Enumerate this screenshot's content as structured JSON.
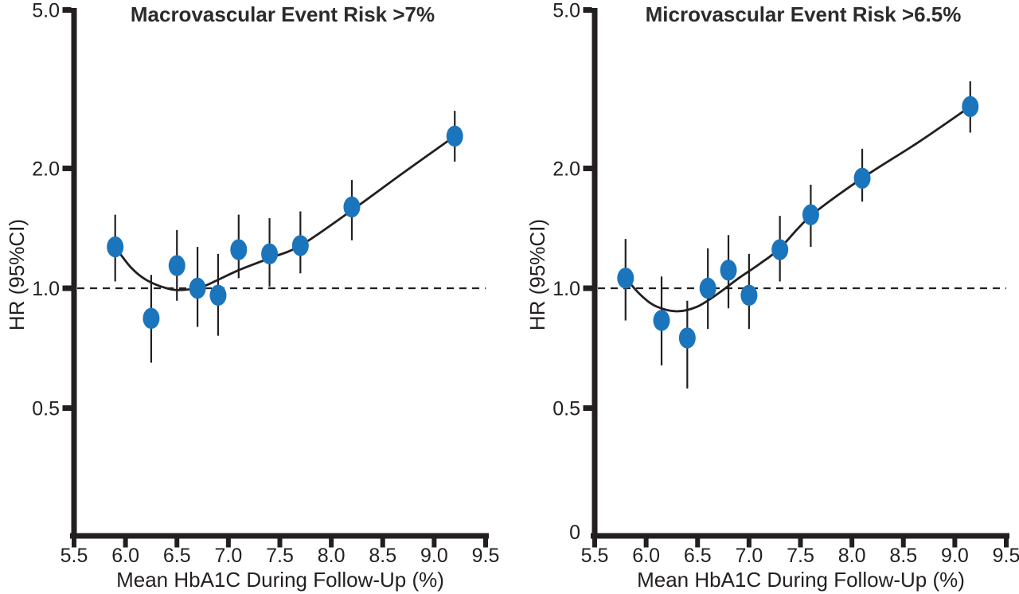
{
  "figure_colors": {
    "point": "#1b75bc",
    "ink": "#231f20"
  },
  "chart_data": [
    {
      "type": "scatter",
      "title": "Macrovascular Event Risk >7%",
      "xlabel": "Mean HbA1C During Follow-Up (%)",
      "ylabel": "HR (95%CI)",
      "y_scale": "log",
      "xlim": [
        5.5,
        9.5
      ],
      "grid": false,
      "reference_line_hr": 1.0,
      "x_ticks": [
        "5.5",
        "6.0",
        "6.5",
        "7.0",
        "7.5",
        "8.0",
        "8.5",
        "9.0",
        "9.5"
      ],
      "y_ticks": [
        {
          "value": 5.0,
          "label": "5.0"
        },
        {
          "value": 2.0,
          "label": "2.0"
        },
        {
          "value": 1.0,
          "label": "1.0"
        },
        {
          "value": 0.5,
          "label": "0.5"
        }
      ],
      "points": [
        {
          "x": 5.9,
          "hr": 1.27,
          "ci_low": 1.04,
          "ci_high": 1.53
        },
        {
          "x": 6.25,
          "hr": 0.84,
          "ci_low": 0.65,
          "ci_high": 1.08
        },
        {
          "x": 6.5,
          "hr": 1.14,
          "ci_low": 0.93,
          "ci_high": 1.4
        },
        {
          "x": 6.7,
          "hr": 1.0,
          "ci_low": 0.8,
          "ci_high": 1.27
        },
        {
          "x": 6.9,
          "hr": 0.96,
          "ci_low": 0.76,
          "ci_high": 1.22
        },
        {
          "x": 7.1,
          "hr": 1.25,
          "ci_low": 1.06,
          "ci_high": 1.53
        },
        {
          "x": 7.4,
          "hr": 1.22,
          "ci_low": 1.01,
          "ci_high": 1.5
        },
        {
          "x": 7.7,
          "hr": 1.28,
          "ci_low": 1.09,
          "ci_high": 1.56
        },
        {
          "x": 8.2,
          "hr": 1.6,
          "ci_low": 1.32,
          "ci_high": 1.87
        },
        {
          "x": 9.2,
          "hr": 2.41,
          "ci_low": 2.08,
          "ci_high": 2.79
        }
      ],
      "trend_curve": [
        [
          5.9,
          1.27
        ],
        [
          6.05,
          1.13
        ],
        [
          6.2,
          1.05
        ],
        [
          6.4,
          1.0
        ],
        [
          6.55,
          0.99
        ],
        [
          6.75,
          1.01
        ],
        [
          6.9,
          1.05
        ],
        [
          7.1,
          1.11
        ],
        [
          7.4,
          1.19
        ],
        [
          7.7,
          1.28
        ],
        [
          8.2,
          1.57
        ],
        [
          8.7,
          1.95
        ],
        [
          9.2,
          2.41
        ]
      ]
    },
    {
      "type": "scatter",
      "title": "Microvascular Event Risk >6.5%",
      "xlabel": "Mean HbA1C During Follow-Up (%)",
      "ylabel": "HR (95%CI)",
      "y_scale": "log",
      "xlim": [
        5.5,
        9.5
      ],
      "grid": false,
      "reference_line_hr": 1.0,
      "x_ticks": [
        "5.5",
        "6.0",
        "6.5",
        "7.0",
        "7.5",
        "8.0",
        "8.5",
        "9.0",
        "9.5"
      ],
      "y_ticks": [
        {
          "value": 5.0,
          "label": "5.0"
        },
        {
          "value": 2.0,
          "label": "2.0"
        },
        {
          "value": 1.0,
          "label": "1.0"
        },
        {
          "value": 0.5,
          "label": "0.5"
        },
        {
          "value": 0,
          "label": "0"
        }
      ],
      "points": [
        {
          "x": 5.8,
          "hr": 1.06,
          "ci_low": 0.83,
          "ci_high": 1.33
        },
        {
          "x": 6.15,
          "hr": 0.83,
          "ci_low": 0.64,
          "ci_high": 1.07
        },
        {
          "x": 6.4,
          "hr": 0.75,
          "ci_low": 0.56,
          "ci_high": 0.93
        },
        {
          "x": 6.6,
          "hr": 1.0,
          "ci_low": 0.79,
          "ci_high": 1.26
        },
        {
          "x": 6.8,
          "hr": 1.11,
          "ci_low": 0.89,
          "ci_high": 1.36
        },
        {
          "x": 7.0,
          "hr": 0.96,
          "ci_low": 0.79,
          "ci_high": 1.22
        },
        {
          "x": 7.3,
          "hr": 1.25,
          "ci_low": 1.04,
          "ci_high": 1.52
        },
        {
          "x": 7.6,
          "hr": 1.53,
          "ci_low": 1.27,
          "ci_high": 1.82
        },
        {
          "x": 8.1,
          "hr": 1.89,
          "ci_low": 1.65,
          "ci_high": 2.24
        },
        {
          "x": 9.15,
          "hr": 2.86,
          "ci_low": 2.46,
          "ci_high": 3.31
        }
      ],
      "trend_curve": [
        [
          5.8,
          1.06
        ],
        [
          5.95,
          0.96
        ],
        [
          6.1,
          0.9
        ],
        [
          6.3,
          0.875
        ],
        [
          6.5,
          0.9
        ],
        [
          6.7,
          0.97
        ],
        [
          6.9,
          1.06
        ],
        [
          7.1,
          1.15
        ],
        [
          7.3,
          1.26
        ],
        [
          7.6,
          1.52
        ],
        [
          8.1,
          1.89
        ],
        [
          8.65,
          2.33
        ],
        [
          9.15,
          2.86
        ]
      ]
    }
  ]
}
